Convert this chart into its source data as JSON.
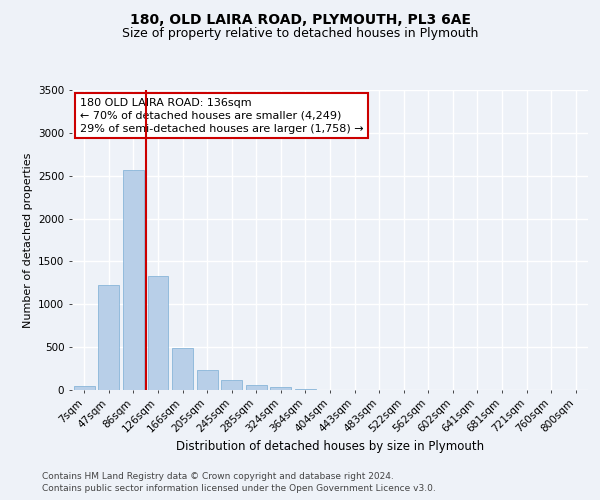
{
  "title_line1": "180, OLD LAIRA ROAD, PLYMOUTH, PL3 6AE",
  "title_line2": "Size of property relative to detached houses in Plymouth",
  "xlabel": "Distribution of detached houses by size in Plymouth",
  "ylabel": "Number of detached properties",
  "categories": [
    "7sqm",
    "47sqm",
    "86sqm",
    "126sqm",
    "166sqm",
    "205sqm",
    "245sqm",
    "285sqm",
    "324sqm",
    "364sqm",
    "404sqm",
    "443sqm",
    "483sqm",
    "522sqm",
    "562sqm",
    "602sqm",
    "641sqm",
    "681sqm",
    "721sqm",
    "760sqm",
    "800sqm"
  ],
  "values": [
    50,
    1230,
    2570,
    1330,
    490,
    230,
    120,
    55,
    30,
    15,
    5,
    2,
    1,
    0,
    0,
    0,
    0,
    0,
    0,
    0,
    0
  ],
  "bar_color": "#b8cfe8",
  "bar_edgecolor": "#7aadd4",
  "marker_bin_index": 3,
  "annotation_line1": "180 OLD LAIRA ROAD: 136sqm",
  "annotation_line2": "← 70% of detached houses are smaller (4,249)",
  "annotation_line3": "29% of semi-detached houses are larger (1,758) →",
  "annotation_box_color": "#ffffff",
  "annotation_box_edgecolor": "#cc0000",
  "marker_line_color": "#cc0000",
  "ylim": [
    0,
    3500
  ],
  "yticks": [
    0,
    500,
    1000,
    1500,
    2000,
    2500,
    3000,
    3500
  ],
  "background_color": "#eef2f8",
  "grid_color": "#ffffff",
  "footer_line1": "Contains HM Land Registry data © Crown copyright and database right 2024.",
  "footer_line2": "Contains public sector information licensed under the Open Government Licence v3.0.",
  "title_fontsize": 10,
  "subtitle_fontsize": 9,
  "ylabel_fontsize": 8,
  "xlabel_fontsize": 8.5,
  "tick_fontsize": 7.5,
  "annotation_fontsize": 8,
  "footer_fontsize": 6.5
}
